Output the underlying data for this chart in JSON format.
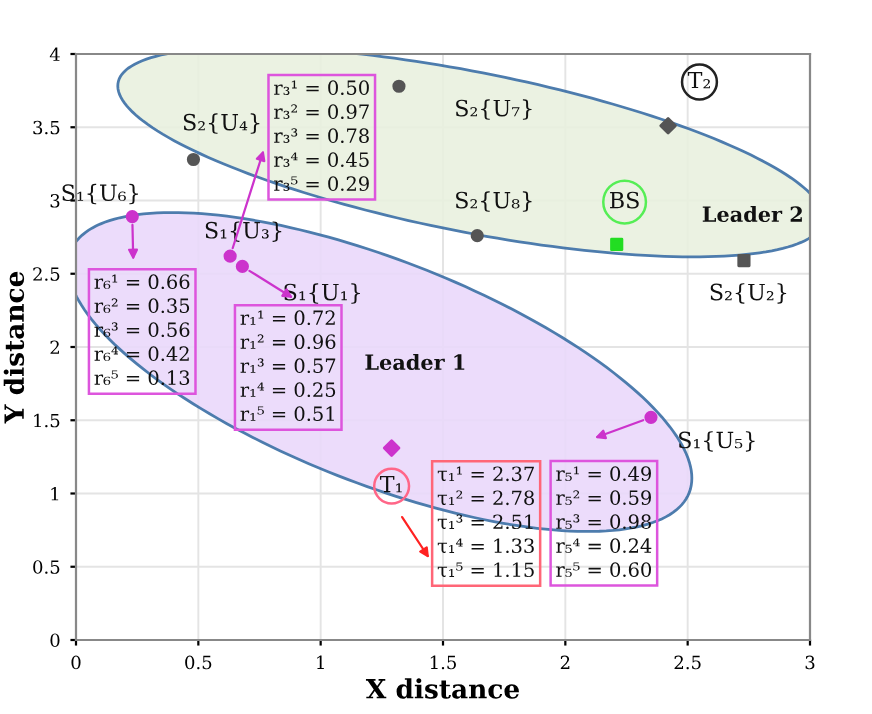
{
  "chart_data": {
    "type": "scatter",
    "xlabel": "X distance",
    "ylabel": "Y distance",
    "xlim": [
      0,
      3
    ],
    "ylim": [
      0,
      4
    ],
    "xticks": [
      0,
      0.5,
      1,
      1.5,
      2,
      2.5,
      3
    ],
    "yticks": [
      0,
      0.5,
      1,
      1.5,
      2,
      2.5,
      3,
      3.5,
      4
    ],
    "grid": true,
    "legend": false,
    "series": [
      {
        "color": "#cc33cc",
        "marker": "circle",
        "x": [
          0.23,
          0.63,
          0.68,
          2.35
        ],
        "values": [
          2.89,
          2.62,
          2.55,
          1.52
        ]
      },
      {
        "color": "#cc33cc",
        "marker": "diamond",
        "x": [
          1.29
        ],
        "values": [
          1.31
        ]
      },
      {
        "color": "#555555",
        "marker": "circle",
        "x": [
          0.48,
          1.32,
          1.64
        ],
        "values": [
          3.28,
          3.78,
          2.76
        ]
      },
      {
        "color": "#555555",
        "marker": "square",
        "x": [
          2.73
        ],
        "values": [
          2.59
        ]
      },
      {
        "color": "#555555",
        "marker": "diamond",
        "x": [
          2.42
        ],
        "values": [
          3.51
        ]
      },
      {
        "color": "#22dd22",
        "marker": "square",
        "x": [
          2.21
        ],
        "values": [
          2.7
        ]
      }
    ],
    "annotations": [
      {
        "text": "S₁{U₆}",
        "x": 0.23,
        "y": 2.89
      },
      {
        "text": "S₂{U₄}",
        "x": 0.48,
        "y": 3.28
      },
      {
        "text": "S₁{U₃}",
        "x": 0.63,
        "y": 2.62
      },
      {
        "text": "S₁{U₁}",
        "x": 0.68,
        "y": 2.55
      },
      {
        "text": "S₂{U₇}",
        "x": 1.32,
        "y": 3.78
      },
      {
        "text": "S₂{U₈}",
        "x": 1.64,
        "y": 2.76
      },
      {
        "text": "BS",
        "x": 2.21,
        "y": 2.7
      },
      {
        "text": "T₂",
        "x": 2.42,
        "y": 3.51
      },
      {
        "text": "S₂{U₂}",
        "x": 2.73,
        "y": 2.59
      },
      {
        "text": "T₁",
        "x": 1.29,
        "y": 1.31
      },
      {
        "text": "S₁{U₅}",
        "x": 2.35,
        "y": 1.52
      },
      "Leader 1",
      "Leader 2",
      {
        "text": "r₃¹ = 0.50\nr₃² = 0.97\nr₃³ = 0.78\nr₃⁴ = 0.45\nr₃⁵ = 0.29",
        "x": 0.63,
        "y": 2.62
      },
      {
        "text": "r₆¹ = 0.66\nr₆² = 0.35\nr₆³ = 0.56\nr₆⁴ = 0.42\nr₆⁵ = 0.13",
        "x": 0.23,
        "y": 2.89
      },
      {
        "text": "r₁¹ = 0.72\nr₁² = 0.96\nr₁³ = 0.57\nr₁⁴ = 0.25\nr₁⁵ = 0.51",
        "x": 0.68,
        "y": 2.55
      },
      {
        "text": "τ₁¹ = 2.37\nτ₁² = 2.78\nτ₁³ = 2.51\nτ₁⁴ = 1.33\nτ₁⁵ = 1.15",
        "x": 1.29,
        "y": 1.31
      },
      {
        "text": "r₅¹ = 0.49\nr₅² = 0.59\nr₅³ = 0.98\nr₅⁴ = 0.24\nr₅⁵ = 0.60",
        "x": 2.35,
        "y": 1.52
      }
    ]
  }
}
